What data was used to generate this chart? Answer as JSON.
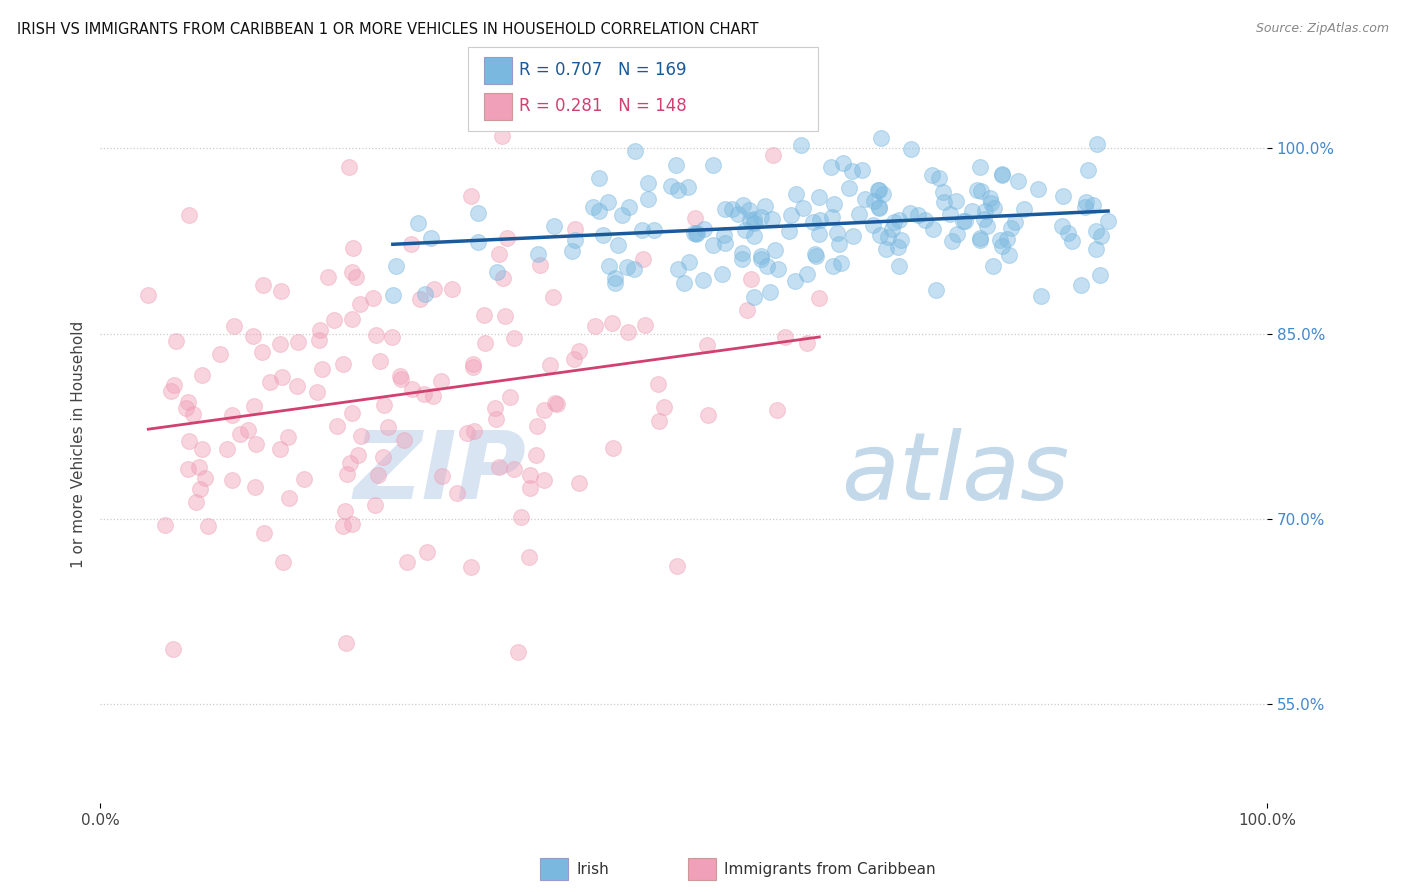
{
  "title": "IRISH VS IMMIGRANTS FROM CARIBBEAN 1 OR MORE VEHICLES IN HOUSEHOLD CORRELATION CHART",
  "source": "Source: ZipAtlas.com",
  "ylabel": "1 or more Vehicles in Household",
  "xlim": [
    0.0,
    1.0
  ],
  "ylim": [
    0.47,
    1.05
  ],
  "yticks": [
    0.55,
    0.7,
    0.85,
    1.0
  ],
  "ytick_labels": [
    "55.0%",
    "70.0%",
    "85.0%",
    "100.0%"
  ],
  "xtick_labels": [
    "0.0%",
    "100.0%"
  ],
  "irish_R": 0.707,
  "irish_N": 169,
  "carib_R": 0.281,
  "carib_N": 148,
  "irish_color": "#7ab8e0",
  "carib_color": "#f0a0b8",
  "irish_line_color": "#1a5a9a",
  "carib_line_color": "#d04070",
  "grid_color": "#cccccc",
  "background_color": "#ffffff",
  "watermark_zip": "ZIP",
  "watermark_atlas": "atlas",
  "legend_labels": [
    "Irish",
    "Immigrants from Caribbean"
  ],
  "seed": 42,
  "dot_size": 130,
  "dot_alpha": 0.45,
  "dot_linewidth": 0.8
}
